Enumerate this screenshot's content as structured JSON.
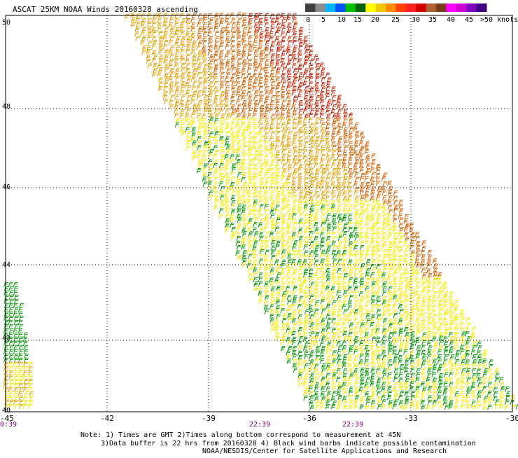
{
  "title": "ASCAT 25KM NOAA Winds 20160328 ascending",
  "legend": {
    "labels": [
      "0",
      "5",
      "10",
      "15",
      "20",
      "25",
      "30",
      "35",
      "40",
      "45",
      ">50 knots"
    ],
    "colors": [
      "#404040",
      "#8c8c8c",
      "#00b4ff",
      "#0050ff",
      "#00c000",
      "#006400",
      "#ffff00",
      "#f2c500",
      "#ff8c00",
      "#ff4000",
      "#ff2020",
      "#d00000",
      "#b06030",
      "#7a3a1a",
      "#ff00ff",
      "#d000d0",
      "#8000c0",
      "#400080"
    ]
  },
  "map": {
    "lon_labels": [
      "-45",
      "-42",
      "-39",
      "-36",
      "-33",
      "-30"
    ],
    "lat_labels": [
      "50",
      "48",
      "46",
      "44",
      "42",
      "40"
    ],
    "time_labels": [
      "0:39",
      "22:39",
      "22:39"
    ],
    "colors": {
      "grid": "#000000",
      "time_label": "#800080",
      "green": "#009900",
      "yellow": "#f5e800",
      "orange": "#e8a000",
      "dark_orange": "#d86000",
      "red": "#c82000"
    }
  },
  "notes": {
    "line1": "Note: 1) Times are GMT 2)Times along bottom correspond to measurement at 45N",
    "line2": "3)Data buffer is 22 hrs from 20160328 4) Black wind barbs indicate possible contamination",
    "line3": "NOAA/NESDIS/Center for Satellite Applications and Research"
  }
}
